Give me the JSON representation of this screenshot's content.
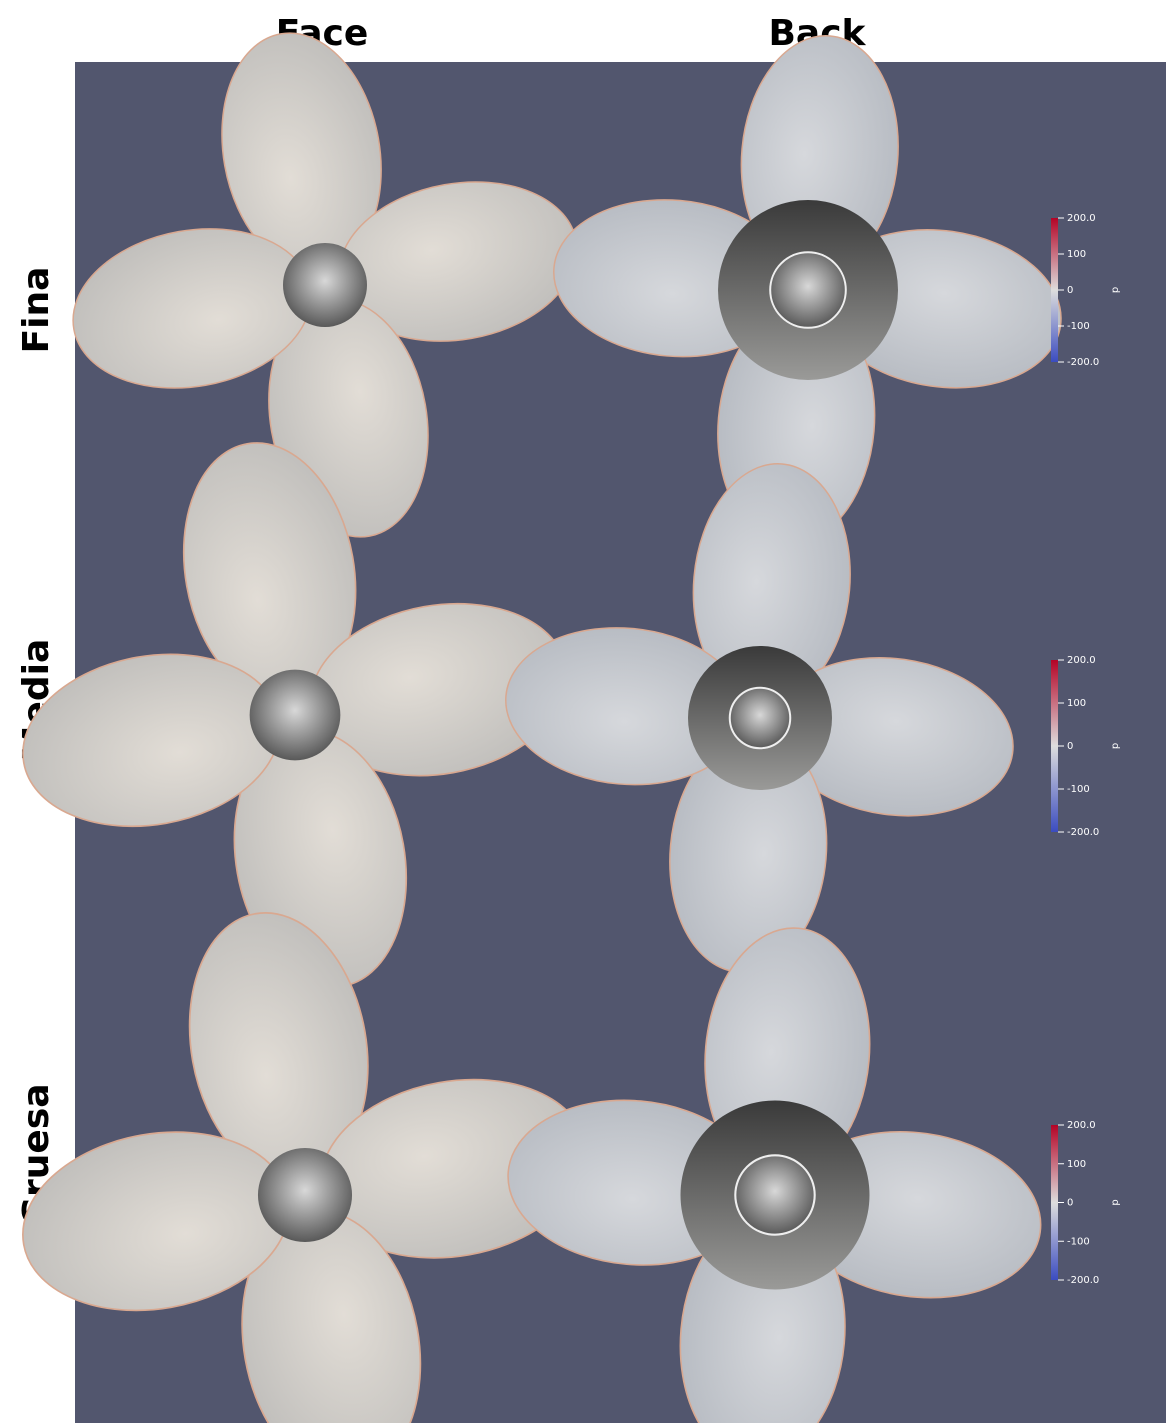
{
  "columns": [
    "Face",
    "Back"
  ],
  "rows": [
    "Fina",
    "Media",
    "Gruesa"
  ],
  "colorbars": [
    {
      "title": "p",
      "ticks": [
        "200.0",
        "100",
        "0",
        "-100",
        "-200.0"
      ]
    },
    {
      "title": "p",
      "ticks": [
        "200.0",
        "100",
        "0",
        "-100",
        "-200.0"
      ]
    },
    {
      "title": "p",
      "ticks": [
        "200.0",
        "100",
        "0",
        "-100",
        "-200.0"
      ]
    }
  ]
}
